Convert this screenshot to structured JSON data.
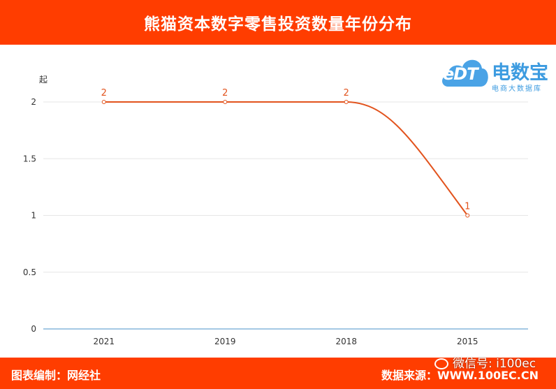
{
  "header": {
    "title": "熊猫资本数字零售投资数量年份分布"
  },
  "footer": {
    "left": "图表编制：网经社",
    "right": "数据来源：WWW.100EC.CN",
    "wechat": "微信号: i100ec"
  },
  "logo": {
    "cloud_text": "eDT",
    "name": "电数宝",
    "subtitle": "电商大数据库"
  },
  "chart_data": {
    "type": "line",
    "title": "熊猫资本数字零售投资数量年份分布",
    "ylabel": "起",
    "xlabel": "",
    "categories": [
      "2021",
      "2019",
      "2018",
      "2015"
    ],
    "values": [
      2,
      2,
      2,
      1
    ],
    "ylim": [
      0,
      2
    ],
    "yticks": [
      "0",
      "0.5",
      "1",
      "1.5",
      "2"
    ],
    "data_labels": [
      "2",
      "2",
      "2",
      "1"
    ],
    "line_color": "#e2531d",
    "axis_color": "#4a90c8",
    "grid": true,
    "smooth": true
  }
}
